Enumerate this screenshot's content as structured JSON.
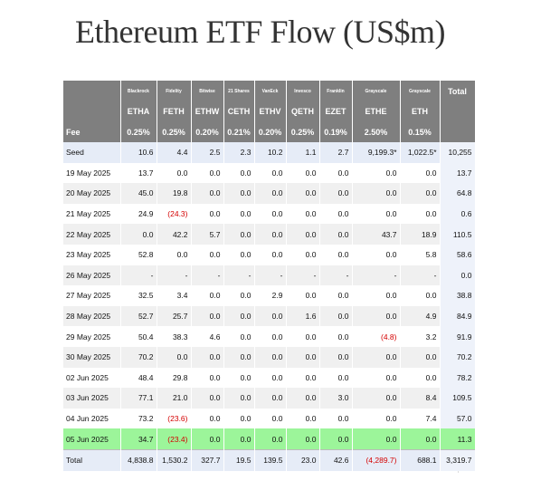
{
  "title": "Ethereum ETF Flow (US$m)",
  "header": {
    "issuers": [
      "Blackrock",
      "Fidelity",
      "Bitwise",
      "21 Shares",
      "VanEck",
      "Invesco",
      "Franklin",
      "Grayscale",
      "Grayscale"
    ],
    "total_label": "Total",
    "tickers": [
      "ETHA",
      "FETH",
      "ETHW",
      "CETH",
      "ETHV",
      "QETH",
      "EZET",
      "ETHE",
      "ETH"
    ],
    "fee_label": "Fee",
    "fees": [
      "0.25%",
      "0.25%",
      "0.20%",
      "0.21%",
      "0.20%",
      "0.25%",
      "0.19%",
      "2.50%",
      "0.15%"
    ]
  },
  "rows": [
    {
      "date": "Seed",
      "values": [
        "10.6",
        "4.4",
        "2.5",
        "2.3",
        "10.2",
        "1.1",
        "2.7",
        "9,199.3*",
        "1,022.5*",
        "10,255"
      ]
    },
    {
      "date": "19 May 2025",
      "values": [
        "13.7",
        "0.0",
        "0.0",
        "0.0",
        "0.0",
        "0.0",
        "0.0",
        "0.0",
        "0.0",
        "13.7"
      ]
    },
    {
      "date": "20 May 2025",
      "values": [
        "45.0",
        "19.8",
        "0.0",
        "0.0",
        "0.0",
        "0.0",
        "0.0",
        "0.0",
        "0.0",
        "64.8"
      ]
    },
    {
      "date": "21 May 2025",
      "values": [
        "24.9",
        "(24.3)",
        "0.0",
        "0.0",
        "0.0",
        "0.0",
        "0.0",
        "0.0",
        "0.0",
        "0.6"
      ]
    },
    {
      "date": "22 May 2025",
      "values": [
        "0.0",
        "42.2",
        "5.7",
        "0.0",
        "0.0",
        "0.0",
        "0.0",
        "43.7",
        "18.9",
        "110.5"
      ]
    },
    {
      "date": "23 May 2025",
      "values": [
        "52.8",
        "0.0",
        "0.0",
        "0.0",
        "0.0",
        "0.0",
        "0.0",
        "0.0",
        "5.8",
        "58.6"
      ]
    },
    {
      "date": "26 May 2025",
      "values": [
        "-",
        "-",
        "-",
        "-",
        "-",
        "-",
        "-",
        "-",
        "-",
        "0.0"
      ]
    },
    {
      "date": "27 May 2025",
      "values": [
        "32.5",
        "3.4",
        "0.0",
        "0.0",
        "2.9",
        "0.0",
        "0.0",
        "0.0",
        "0.0",
        "38.8"
      ]
    },
    {
      "date": "28 May 2025",
      "values": [
        "52.7",
        "25.7",
        "0.0",
        "0.0",
        "0.0",
        "1.6",
        "0.0",
        "0.0",
        "4.9",
        "84.9"
      ]
    },
    {
      "date": "29 May 2025",
      "values": [
        "50.4",
        "38.3",
        "4.6",
        "0.0",
        "0.0",
        "0.0",
        "0.0",
        "(4.8)",
        "3.2",
        "91.9"
      ]
    },
    {
      "date": "30 May 2025",
      "values": [
        "70.2",
        "0.0",
        "0.0",
        "0.0",
        "0.0",
        "0.0",
        "0.0",
        "0.0",
        "0.0",
        "70.2"
      ]
    },
    {
      "date": "02 Jun 2025",
      "values": [
        "48.4",
        "29.8",
        "0.0",
        "0.0",
        "0.0",
        "0.0",
        "0.0",
        "0.0",
        "0.0",
        "78.2"
      ]
    },
    {
      "date": "03 Jun 2025",
      "values": [
        "77.1",
        "21.0",
        "0.0",
        "0.0",
        "0.0",
        "0.0",
        "3.0",
        "0.0",
        "8.4",
        "109.5"
      ]
    },
    {
      "date": "04 Jun 2025",
      "values": [
        "73.2",
        "(23.6)",
        "0.0",
        "0.0",
        "0.0",
        "0.0",
        "0.0",
        "0.0",
        "7.4",
        "57.0"
      ]
    },
    {
      "date": "05 Jun 2025",
      "values": [
        "34.7",
        "(23.4)",
        "0.0",
        "0.0",
        "0.0",
        "0.0",
        "0.0",
        "0.0",
        "0.0",
        "11.3"
      ]
    }
  ],
  "total_row": {
    "label": "Total",
    "values": [
      "4,838.8",
      "1,530.2",
      "327.7",
      "19.5",
      "139.5",
      "23.0",
      "42.6",
      "(4,289.7)",
      "688.1",
      "3,319.7"
    ]
  },
  "colors": {
    "header_bg": "#7f7f7f",
    "highlight_row": "#9cf59a",
    "seed_row": "#e6ecf7",
    "negative": "#d40000"
  }
}
